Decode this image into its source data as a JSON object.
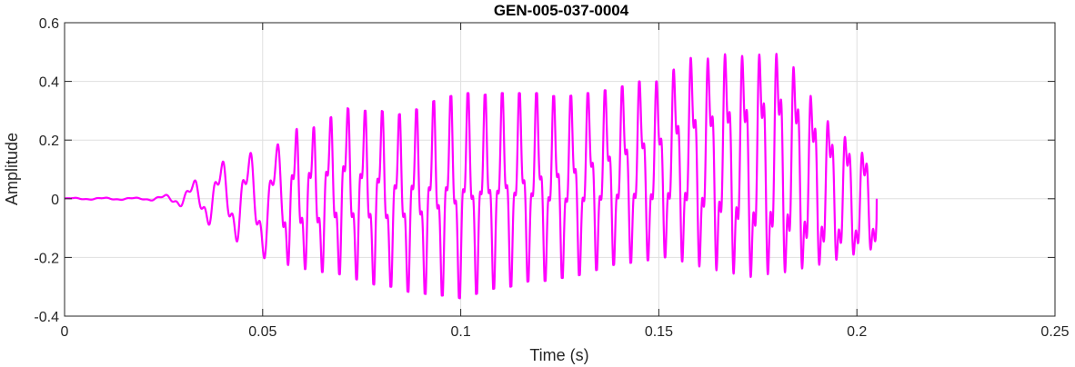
{
  "chart_data": {
    "type": "line",
    "title": "GEN-005-037-0004",
    "xlabel": "Time (s)",
    "ylabel": "Amplitude",
    "xlim": [
      0,
      0.25
    ],
    "ylim": [
      -0.4,
      0.6
    ],
    "x_ticks": [
      0,
      0.05,
      0.1,
      0.15,
      0.2,
      0.25
    ],
    "x_tick_labels": [
      "0",
      "0.05",
      "0.1",
      "0.15",
      "0.2",
      "0.25"
    ],
    "y_ticks": [
      -0.4,
      -0.2,
      0,
      0.2,
      0.4,
      0.6
    ],
    "y_tick_labels": [
      "-0.4",
      "-0.2",
      "0",
      "0.2",
      "0.4",
      "0.6"
    ],
    "grid": true,
    "line_color": "#ff00ff",
    "series": [
      {
        "x": [
          0,
          0.005,
          0.01,
          0.015,
          0.02,
          0.025,
          0.0275,
          0.03,
          0.0325,
          0.035,
          0.0375,
          0.04,
          0.0425,
          0.045,
          0.0475,
          0.05,
          0.0525,
          0.055,
          0.0575,
          0.06,
          0.0625,
          0.065,
          0.0675,
          0.07,
          0.0725,
          0.075,
          0.0775,
          0.08,
          0.0825,
          0.085,
          0.0875,
          0.09,
          0.0925,
          0.095,
          0.0975,
          0.1,
          0.1025,
          0.105,
          0.1075,
          0.11,
          0.1125,
          0.115,
          0.1175,
          0.12,
          0.1225,
          0.125,
          0.1275,
          0.13,
          0.1325,
          0.135,
          0.1375,
          0.14,
          0.1425,
          0.145,
          0.1475,
          0.15,
          0.1525,
          0.155,
          0.1575,
          0.16,
          0.1625,
          0.165,
          0.1675,
          0.17,
          0.1725,
          0.175,
          0.1775,
          0.18,
          0.1825,
          0.185,
          0.1875,
          0.19,
          0.1925,
          0.195,
          0.1975,
          0.2,
          0.2025,
          0.205
        ],
        "y_max": [
          0.003,
          0.004,
          0.004,
          0.004,
          0.004,
          0.012,
          0.02,
          0.04,
          0.06,
          0.09,
          0.11,
          0.13,
          0.14,
          0.15,
          0.16,
          0.17,
          0.18,
          0.19,
          0.22,
          0.26,
          0.24,
          0.26,
          0.28,
          0.32,
          0.3,
          0.3,
          0.3,
          0.3,
          0.28,
          0.29,
          0.31,
          0.3,
          0.33,
          0.34,
          0.35,
          0.36,
          0.36,
          0.35,
          0.36,
          0.36,
          0.36,
          0.36,
          0.36,
          0.36,
          0.35,
          0.35,
          0.35,
          0.36,
          0.36,
          0.37,
          0.37,
          0.38,
          0.39,
          0.4,
          0.4,
          0.4,
          0.42,
          0.46,
          0.48,
          0.48,
          0.48,
          0.5,
          0.5,
          0.5,
          0.5,
          0.51,
          0.52,
          0.52,
          0.51,
          0.46,
          0.4,
          0.35,
          0.3,
          0.26,
          0.24,
          0.2,
          0.18,
          0.18
        ],
        "y_min": [
          -0.003,
          -0.003,
          -0.004,
          -0.004,
          -0.004,
          -0.01,
          -0.02,
          -0.03,
          -0.05,
          -0.08,
          -0.1,
          -0.12,
          -0.14,
          -0.16,
          -0.18,
          -0.2,
          -0.22,
          -0.22,
          -0.23,
          -0.24,
          -0.24,
          -0.25,
          -0.25,
          -0.26,
          -0.27,
          -0.28,
          -0.29,
          -0.3,
          -0.3,
          -0.31,
          -0.32,
          -0.32,
          -0.33,
          -0.33,
          -0.33,
          -0.34,
          -0.33,
          -0.32,
          -0.31,
          -0.3,
          -0.3,
          -0.29,
          -0.28,
          -0.28,
          -0.28,
          -0.27,
          -0.27,
          -0.26,
          -0.25,
          -0.24,
          -0.23,
          -0.22,
          -0.22,
          -0.21,
          -0.21,
          -0.2,
          -0.2,
          -0.21,
          -0.22,
          -0.23,
          -0.24,
          -0.25,
          -0.26,
          -0.27,
          -0.28,
          -0.29,
          -0.28,
          -0.28,
          -0.28,
          -0.27,
          -0.27,
          -0.26,
          -0.25,
          -0.24,
          -0.23,
          -0.22,
          -0.21,
          -0.2
        ]
      }
    ]
  }
}
